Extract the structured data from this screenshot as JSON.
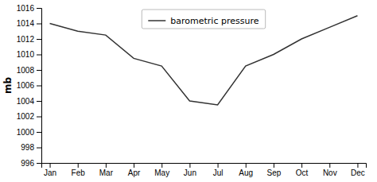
{
  "chart_data": {
    "type": "line",
    "categories": [
      "Jan",
      "Feb",
      "Mar",
      "Apr",
      "May",
      "Jun",
      "Jul",
      "Aug",
      "Sep",
      "Oct",
      "Nov",
      "Dec"
    ],
    "series": [
      {
        "name": "barometric pressure",
        "color": "#333333",
        "values": [
          1014.0,
          1013.0,
          1012.5,
          1009.5,
          1008.5,
          1004.0,
          1003.5,
          1008.5,
          1010.0,
          1012.0,
          1013.5,
          1015.0
        ]
      }
    ],
    "ylabel": "mb",
    "ylim": [
      996,
      1016
    ],
    "yticks": [
      996,
      998,
      1000,
      1002,
      1004,
      1006,
      1008,
      1010,
      1012,
      1014,
      1016
    ],
    "grid": false,
    "legend": "upper center"
  }
}
